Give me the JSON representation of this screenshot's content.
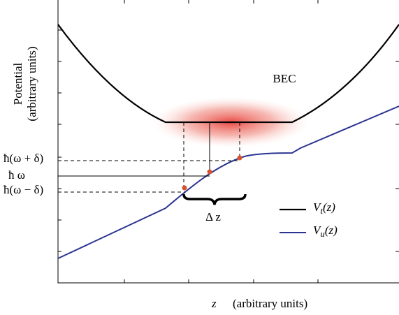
{
  "title_label": "BEC",
  "y_axis": {
    "line1": "Potential",
    "line2": "(arbitrary units)"
  },
  "x_axis": {
    "symbol": "z",
    "units": "(arbitrary units)"
  },
  "levels": [
    "ħ(ω + δ)",
    "ħ ω",
    "ħ(ω − δ)"
  ],
  "width_label": "Δ z",
  "legend": [
    {
      "symbol": "V",
      "subscript": "t",
      "arg": "(z)"
    },
    {
      "symbol": "V",
      "subscript": "u",
      "arg": "(z)"
    }
  ]
}
